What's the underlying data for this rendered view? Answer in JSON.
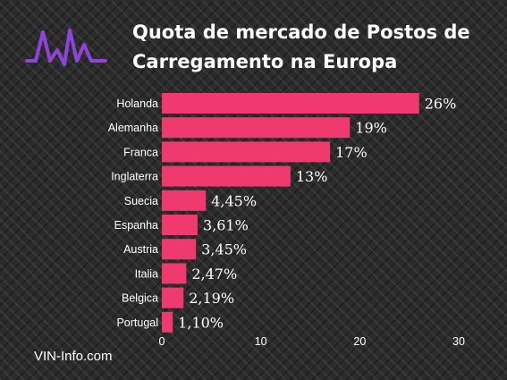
{
  "title": {
    "line1": "Quota de mercado de Postos de",
    "line2": "Carregamento na Europa"
  },
  "footer": "VIN-Info.com",
  "logo_icon": "heartbeat-pulse-icon",
  "colors": {
    "bar": "#f0396f",
    "accent": "#8e44d9",
    "text": "#ffffff"
  },
  "chart_data": {
    "type": "bar",
    "orientation": "horizontal",
    "title": "Quota de mercado de Postos de Carregamento na Europa",
    "categories": [
      "Holanda",
      "Alemanha",
      "Franca",
      "Inglaterra",
      "Suecia",
      "Espanha",
      "Austria",
      "Italia",
      "Belgica",
      "Portugal"
    ],
    "values": [
      26,
      19,
      17,
      13,
      4.45,
      3.61,
      3.45,
      2.47,
      2.19,
      1.1
    ],
    "data_labels": [
      "26%",
      "19%",
      "17%",
      "13%",
      "4,45%",
      "3,61%",
      "3,45%",
      "2,47%",
      "2,19%",
      "1,10%"
    ],
    "xlim": [
      0,
      30
    ],
    "xticks": [
      0,
      10,
      20,
      30
    ],
    "xlabel": "",
    "ylabel": "",
    "grid": false,
    "legend": "none"
  }
}
